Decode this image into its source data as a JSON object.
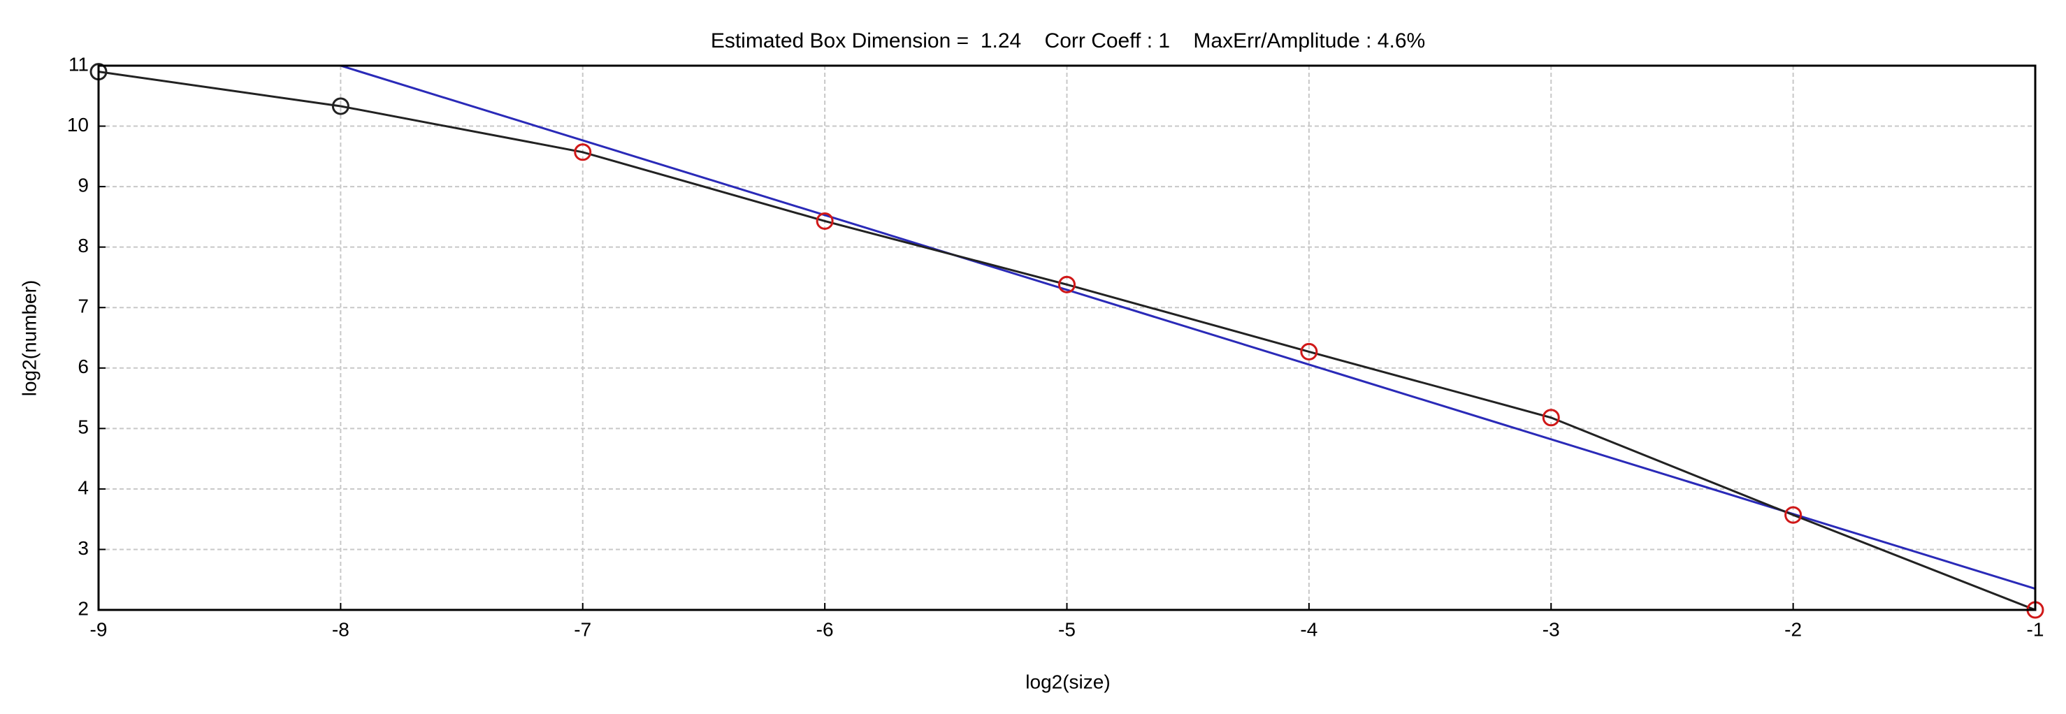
{
  "chart_data": {
    "type": "line",
    "title": "Estimated Box Dimension =  1.24    Corr Coeff : 1    MaxErr/Amplitude : 4.6%",
    "x_label": "log2(size)",
    "y_label": "log2(number)",
    "xlim": [
      -9,
      -1
    ],
    "xticks": [
      -9,
      -8,
      -7,
      -6,
      -5,
      -4,
      -3,
      -2,
      -1
    ],
    "ylim": [
      2,
      11
    ],
    "yticks": [
      2,
      3,
      4,
      5,
      6,
      7,
      8,
      9,
      10,
      11
    ],
    "grid": true,
    "series": [
      {
        "x": [
          -9,
          -8,
          -7,
          -6,
          -5,
          -4,
          -3,
          -2,
          -1
        ],
        "values": [
          10.9,
          10.33,
          9.57,
          8.43,
          7.38,
          6.27,
          5.18,
          3.57,
          2.0
        ],
        "color": "#222222",
        "marker_colors": [
          "#222222",
          "#222222",
          "#d01818",
          "#d01818",
          "#d01818",
          "#d01818",
          "#d01818",
          "#d01818",
          "#d01818"
        ]
      },
      {
        "x": [
          -8,
          -1
        ],
        "values": [
          11,
          2.35
        ],
        "color": "#2a2ab8"
      }
    ]
  }
}
